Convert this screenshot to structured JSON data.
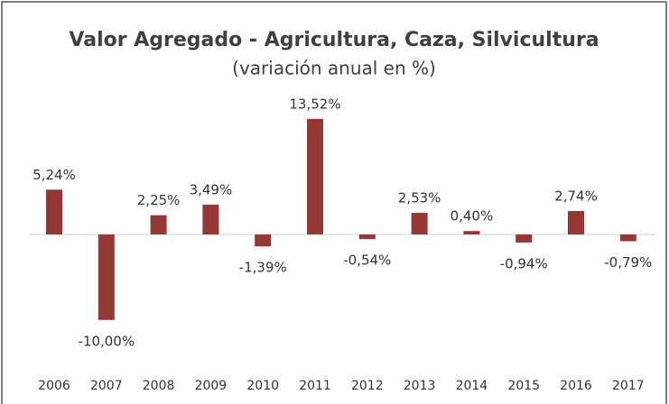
{
  "chart_data": {
    "type": "bar",
    "title": "Valor Agregado - Agricultura, Caza, Silvicultura",
    "subtitle": "(variación anual en %)",
    "categories": [
      "2006",
      "2007",
      "2008",
      "2009",
      "2010",
      "2011",
      "2012",
      "2013",
      "2014",
      "2015",
      "2016",
      "2017"
    ],
    "values": [
      5.24,
      -10.0,
      2.25,
      3.49,
      -1.39,
      13.52,
      -0.54,
      2.53,
      0.4,
      -0.94,
      2.74,
      -0.79
    ],
    "value_labels": [
      "5,24%",
      "-10,00%",
      "2,25%",
      "3,49%",
      "-1,39%",
      "13,52%",
      "-0,54%",
      "2,53%",
      "0,40%",
      "-0,94%",
      "2,74%",
      "-0,79%"
    ],
    "color": "#953735"
  }
}
